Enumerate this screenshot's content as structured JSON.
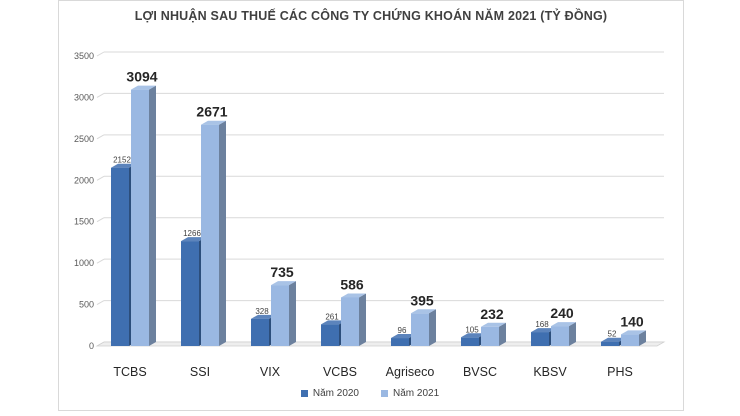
{
  "chart_data": {
    "type": "bar",
    "title": "LỢI NHUẬN SAU THUẾ CÁC CÔNG TY CHỨNG KHOÁN NĂM 2021 (TỶ ĐỒNG)",
    "categories": [
      "TCBS",
      "SSI",
      "VIX",
      "VCBS",
      "Agriseco",
      "BVSC",
      "KBSV",
      "PHS"
    ],
    "series": [
      {
        "name": "Năm 2020",
        "values": [
          2152,
          1266,
          328,
          261,
          96,
          105,
          168,
          52
        ],
        "color": "#3f6fb0"
      },
      {
        "name": "Năm 2021",
        "values": [
          3094,
          2671,
          735,
          586,
          395,
          232,
          240,
          140
        ],
        "color": "#9ab8e2"
      }
    ],
    "ylim": [
      0,
      3500
    ],
    "yticks": [
      0,
      500,
      1000,
      1500,
      2000,
      2500,
      3000,
      3500
    ],
    "grid": true,
    "legend": "bottom",
    "style": "3d-column"
  }
}
